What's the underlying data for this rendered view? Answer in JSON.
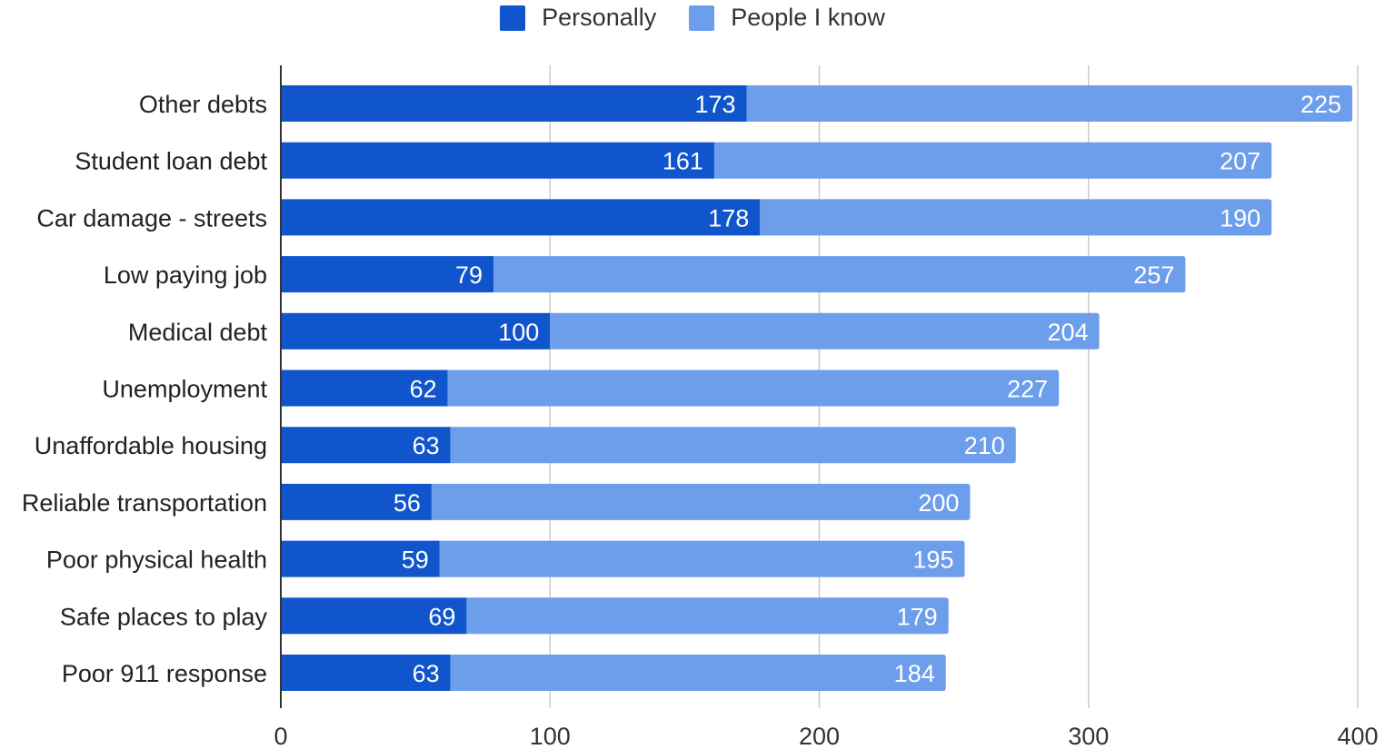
{
  "chart_data": {
    "type": "bar",
    "orientation": "horizontal",
    "stacked": true,
    "categories": [
      "Other debts",
      "Student loan debt",
      "Car damage - streets",
      "Low paying job",
      "Medical debt",
      "Unemployment",
      "Unaffordable housing",
      "Reliable transportation",
      "Poor physical health",
      "Safe places to play",
      "Poor 911 response"
    ],
    "series": [
      {
        "name": "Personally",
        "color": "#1155cc",
        "values": [
          173,
          161,
          178,
          79,
          100,
          62,
          63,
          56,
          59,
          69,
          63
        ]
      },
      {
        "name": "People I know",
        "color": "#6d9eeb",
        "values": [
          225,
          207,
          190,
          257,
          204,
          227,
          210,
          200,
          195,
          179,
          184
        ]
      }
    ],
    "xlim": [
      0,
      400
    ],
    "xticks": [
      "0",
      "100",
      "200",
      "300",
      "400"
    ],
    "grid": true,
    "legend": "top-center",
    "data_labels": true
  }
}
